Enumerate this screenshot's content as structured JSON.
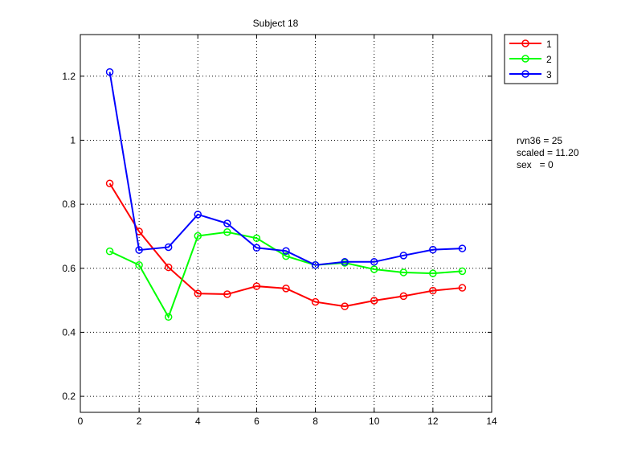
{
  "chart_data": {
    "type": "line",
    "title": "Subject 18",
    "xlabel": "",
    "ylabel": "",
    "xlim": [
      0,
      14
    ],
    "ylim": [
      0.15,
      1.33
    ],
    "xticks": [
      0,
      2,
      4,
      6,
      8,
      10,
      12,
      14
    ],
    "yticks": [
      0.2,
      0.4,
      0.6,
      0.8,
      1.0,
      1.2
    ],
    "xtick_labels": [
      "0",
      "2",
      "4",
      "6",
      "8",
      "10",
      "12",
      "14"
    ],
    "ytick_labels": [
      "0.2",
      "0.4",
      "0.6",
      "0.8",
      "1",
      "1.2"
    ],
    "grid": true,
    "legend_position": "outside-top-right",
    "x": [
      1,
      2,
      3,
      4,
      5,
      6,
      7,
      8,
      9,
      10,
      11,
      12,
      13
    ],
    "series": [
      {
        "name": "1",
        "color": "#ff0000",
        "values": [
          0.865,
          0.715,
          0.603,
          0.521,
          0.519,
          0.544,
          0.537,
          0.495,
          0.481,
          0.499,
          0.513,
          0.53,
          0.539
        ]
      },
      {
        "name": "2",
        "color": "#00ff00",
        "values": [
          0.653,
          0.61,
          0.448,
          0.701,
          0.713,
          0.694,
          0.638,
          0.61,
          0.617,
          0.597,
          0.587,
          0.584,
          0.591
        ]
      },
      {
        "name": "3",
        "color": "#0000ff",
        "values": [
          1.213,
          0.657,
          0.666,
          0.768,
          0.74,
          0.664,
          0.654,
          0.61,
          0.62,
          0.62,
          0.64,
          0.658,
          0.662
        ]
      }
    ]
  },
  "annotations": [
    "rvn36 = 25",
    "scaled = 11.20",
    "sex   = 0"
  ]
}
